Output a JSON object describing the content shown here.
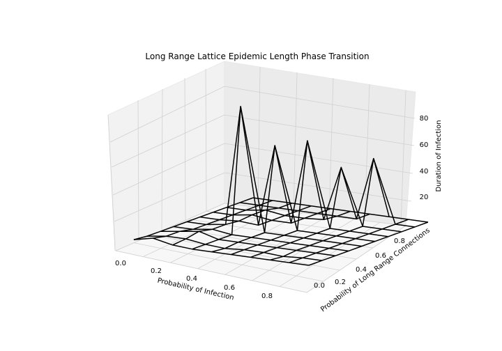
{
  "chart_data": {
    "type": "wireframe",
    "title": "Long Range Lattice Epidemic Length Phase Transition",
    "xlabel": "Probability of Infection",
    "ylabel": "Probability of Long Range Connections",
    "zlabel": "Duration of Infection",
    "x": [
      0.0,
      0.1,
      0.2,
      0.3,
      0.4,
      0.5,
      0.6,
      0.7,
      0.8,
      0.9
    ],
    "y": [
      0.0,
      0.1,
      0.2,
      0.3,
      0.4,
      0.5,
      0.6,
      0.7,
      0.8,
      0.9
    ],
    "xlim": [
      0.0,
      0.9
    ],
    "ylim": [
      0.0,
      0.9
    ],
    "zlim": [
      1,
      98
    ],
    "x_ticks": [
      "0.0",
      "0.2",
      "0.4",
      "0.6",
      "0.8"
    ],
    "y_ticks": [
      "0.0",
      "0.2",
      "0.4",
      "0.6",
      "0.8"
    ],
    "z_ticks": [
      "20",
      "40",
      "60",
      "80"
    ],
    "grid": true,
    "line_color": "#000000",
    "pane_color": "#f2f2f2",
    "z_rows_by_y": [
      [
        3,
        6,
        3,
        2,
        2,
        2,
        2,
        2,
        2,
        2
      ],
      [
        2,
        4,
        4,
        2,
        1,
        2,
        2,
        1,
        2,
        2
      ],
      [
        2,
        4,
        6,
        2,
        2,
        2,
        2,
        2,
        2,
        2
      ],
      [
        2,
        2,
        4,
        2,
        2,
        2,
        2,
        2,
        2,
        2
      ],
      [
        2,
        2,
        4,
        92,
        2,
        2,
        2,
        2,
        2,
        2
      ],
      [
        2,
        2,
        3,
        2,
        62,
        2,
        2,
        2,
        2,
        2
      ],
      [
        2,
        2,
        4,
        2,
        2,
        64,
        2,
        2,
        2,
        2
      ],
      [
        2,
        2,
        4,
        2,
        2,
        3,
        43,
        2,
        2,
        2
      ],
      [
        2,
        2,
        2,
        2,
        2,
        2,
        2,
        48,
        2,
        2
      ],
      [
        2,
        2,
        2,
        2,
        2,
        2,
        2,
        2,
        2,
        2
      ]
    ]
  }
}
